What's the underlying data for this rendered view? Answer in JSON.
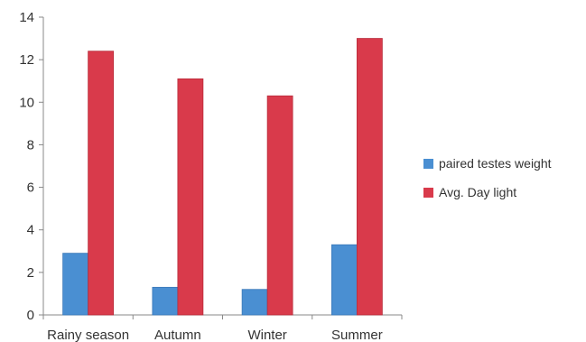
{
  "chart_data": {
    "type": "bar",
    "categories": [
      "Rainy season",
      "Autumn",
      "Winter",
      "Summer"
    ],
    "series": [
      {
        "name": "paired testes weight",
        "values": [
          2.9,
          1.3,
          1.2,
          3.3
        ],
        "color": "#4a8fd2"
      },
      {
        "name": "Avg. Day light",
        "values": [
          12.4,
          11.1,
          10.3,
          13.0
        ],
        "color": "#d93a4b"
      }
    ],
    "ylim": [
      0,
      14
    ],
    "yticks": [
      "0",
      "2",
      "4",
      "6",
      "8",
      "10",
      "12",
      "14"
    ],
    "grid": false,
    "legend_position": "right"
  }
}
